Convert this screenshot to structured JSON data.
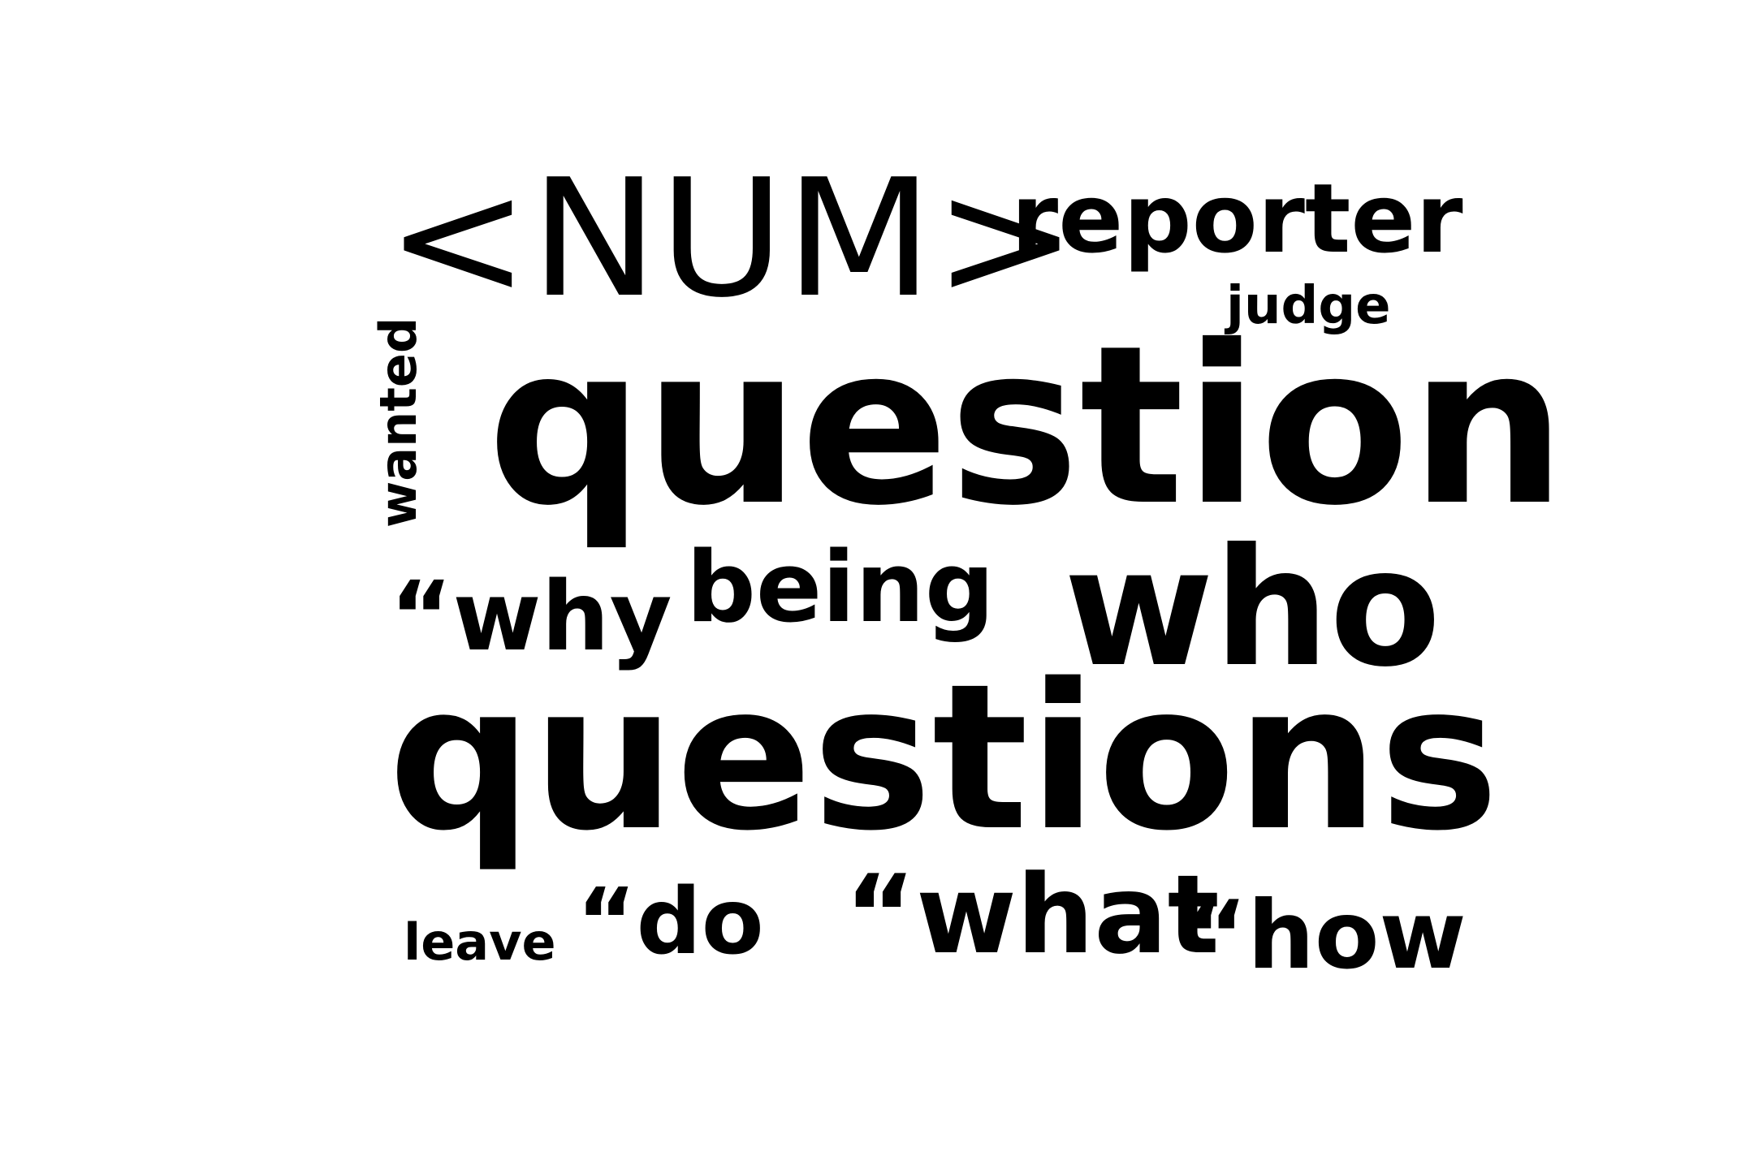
{
  "word_cloud": {
    "words": {
      "num": "<NUM>",
      "reporter": "reporter",
      "judge": "judge",
      "wanted": "wanted",
      "question": "question",
      "why": "“why",
      "being": "being",
      "who": "who",
      "questions": "questions",
      "leave": "leave",
      "do": "“do",
      "what": "“what",
      "how": "“how"
    },
    "text_color": "#000000",
    "background_color": "#ffffff"
  }
}
